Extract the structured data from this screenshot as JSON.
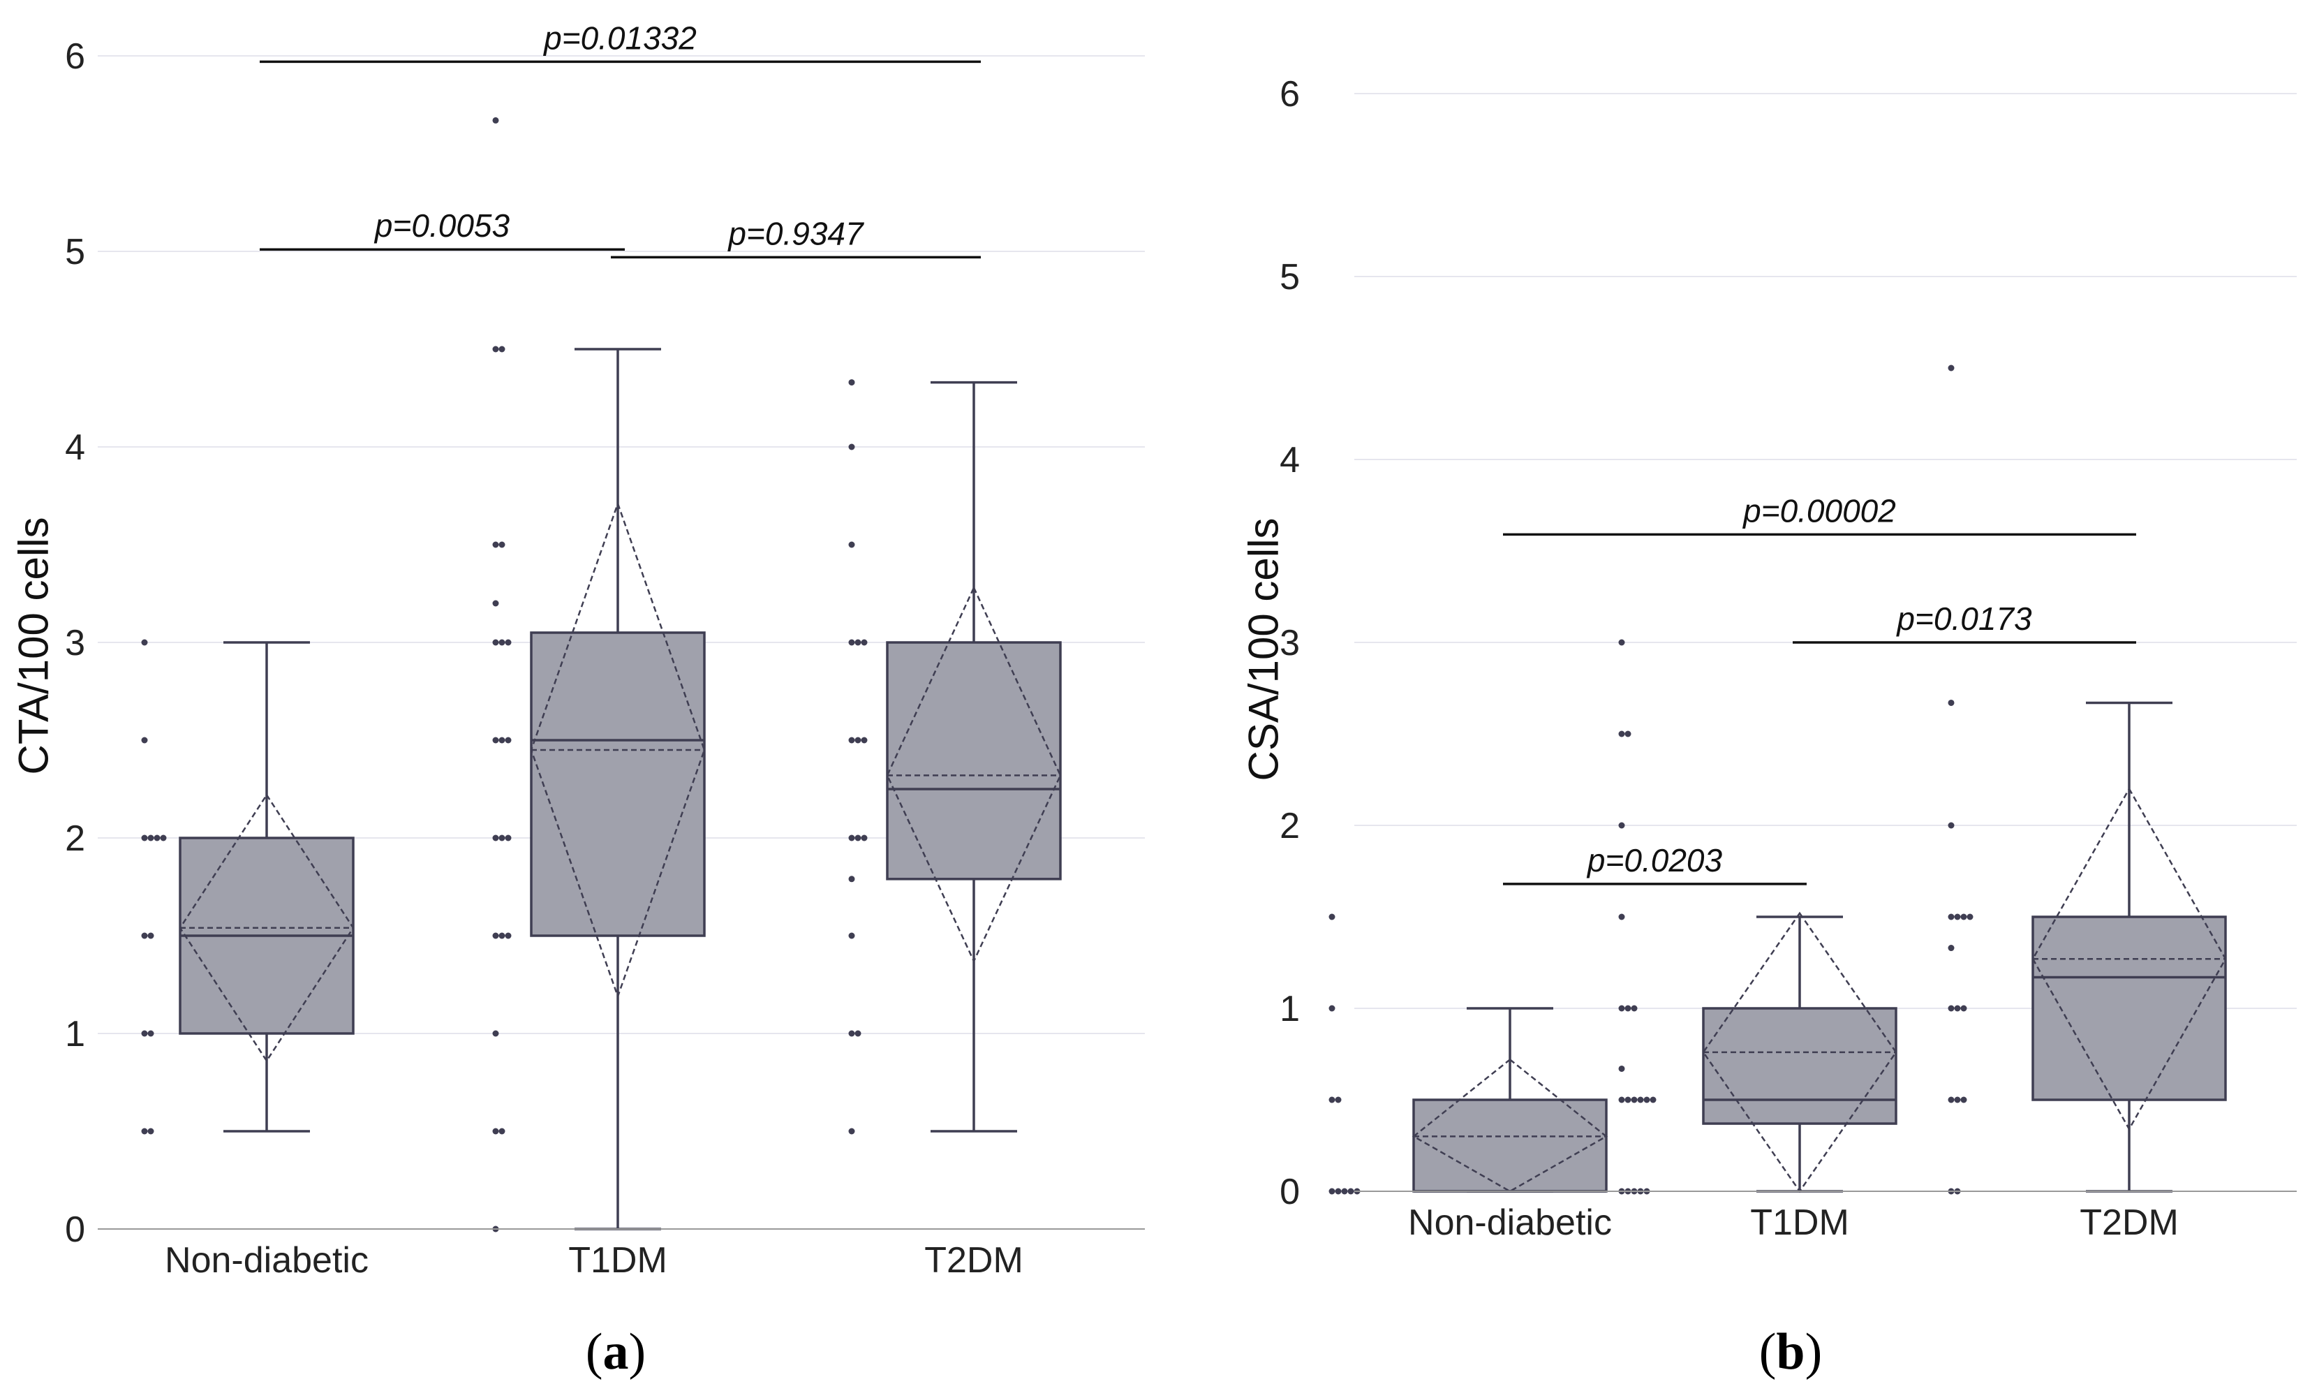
{
  "colors": {
    "box_fill": "#a0a1ac",
    "box_stroke": "#3f3e52",
    "point": "#3f3e52",
    "grid": "#e6e6ee",
    "axis": "#999999",
    "text": "#111111"
  },
  "chart_data": [
    {
      "type": "box",
      "panel_label": {
        "open": "(",
        "letter": "a",
        "close": ")"
      },
      "xlabel": "",
      "ylabel": "CTA/100 cells",
      "ylim": [
        0,
        6
      ],
      "yticks": [
        "0",
        "1",
        "2",
        "3",
        "4",
        "5",
        "6"
      ],
      "categories": [
        "Non-diabetic",
        "T1DM",
        "T2DM"
      ],
      "grid": true,
      "boxes": [
        {
          "category": "Non-diabetic",
          "whisker_low": 0.5,
          "q1": 1.0,
          "median": 1.5,
          "q3": 2.0,
          "whisker_high": 3.0,
          "mean": 1.54,
          "sd_low": 0.86,
          "sd_high": 2.22
        },
        {
          "category": "T1DM",
          "whisker_low": 0.0,
          "q1": 1.5,
          "median": 2.5,
          "q3": 3.05,
          "whisker_high": 4.5,
          "mean": 2.45,
          "sd_low": 1.19,
          "sd_high": 3.71
        },
        {
          "category": "T2DM",
          "whisker_low": 0.5,
          "q1": 1.79,
          "median": 2.25,
          "q3": 3.0,
          "whisker_high": 4.33,
          "mean": 2.32,
          "sd_low": 1.37,
          "sd_high": 3.28
        }
      ],
      "points": [
        {
          "category": "Non-diabetic",
          "values": [
            0.5,
            0.5,
            1.0,
            1.0,
            1.5,
            1.5,
            2.0,
            2.0,
            2.0,
            2.0,
            2.5,
            3.0
          ]
        },
        {
          "category": "T1DM",
          "values": [
            0.0,
            0.5,
            0.5,
            1.0,
            1.5,
            1.5,
            1.5,
            2.0,
            2.0,
            2.0,
            2.5,
            2.5,
            2.5,
            3.0,
            3.0,
            3.0,
            3.2,
            3.5,
            3.5,
            4.5,
            4.5,
            5.67
          ]
        },
        {
          "category": "T2DM",
          "values": [
            0.5,
            1.0,
            1.0,
            1.5,
            1.79,
            2.0,
            2.0,
            2.0,
            2.5,
            2.5,
            2.5,
            3.0,
            3.0,
            3.0,
            3.5,
            4.0,
            4.33
          ]
        }
      ],
      "comparisons": [
        {
          "from": "Non-diabetic",
          "to": "T2DM",
          "y": 5.97,
          "label": "p=0.01332"
        },
        {
          "from": "Non-diabetic",
          "to": "T1DM",
          "y": 5.01,
          "label": "p=0.0053"
        },
        {
          "from": "T1DM",
          "to": "T2DM",
          "y": 4.97,
          "label": "p=0.9347"
        }
      ]
    },
    {
      "type": "box",
      "panel_label": {
        "open": "(",
        "letter": "b",
        "close": ")"
      },
      "xlabel": "",
      "ylabel": "CSA/100 cells",
      "ylim": [
        0,
        6
      ],
      "yticks": [
        "0",
        "1",
        "2",
        "3",
        "4",
        "5",
        "6"
      ],
      "categories": [
        "Non-diabetic",
        "T1DM",
        "T2DM"
      ],
      "grid": true,
      "boxes": [
        {
          "category": "Non-diabetic",
          "whisker_low": 0.0,
          "q1": 0.0,
          "median": 0.0,
          "q3": 0.5,
          "whisker_high": 1.0,
          "mean": 0.3,
          "sd_low": 0.0,
          "sd_high": 0.72
        },
        {
          "category": "T1DM",
          "whisker_low": 0.0,
          "q1": 0.37,
          "median": 0.5,
          "q3": 1.0,
          "whisker_high": 1.5,
          "mean": 0.76,
          "sd_low": 0.0,
          "sd_high": 1.52
        },
        {
          "category": "T2DM",
          "whisker_low": 0.0,
          "q1": 0.5,
          "median": 1.17,
          "q3": 1.5,
          "whisker_high": 2.67,
          "mean": 1.27,
          "sd_low": 0.34,
          "sd_high": 2.2
        }
      ],
      "points": [
        {
          "category": "Non-diabetic",
          "values": [
            0.0,
            0.0,
            0.0,
            0.0,
            0.0,
            0.5,
            0.5,
            1.0,
            1.5
          ]
        },
        {
          "category": "T1DM",
          "values": [
            0.0,
            0.0,
            0.0,
            0.0,
            0.0,
            0.5,
            0.5,
            0.5,
            0.5,
            0.5,
            0.5,
            0.67,
            1.0,
            1.0,
            1.0,
            1.5,
            2.0,
            2.5,
            2.5,
            3.0
          ]
        },
        {
          "category": "T2DM",
          "values": [
            0.0,
            0.0,
            0.5,
            0.5,
            0.5,
            1.0,
            1.0,
            1.0,
            1.33,
            1.5,
            1.5,
            1.5,
            1.5,
            2.0,
            2.67,
            4.5
          ]
        }
      ],
      "comparisons": [
        {
          "from": "Non-diabetic",
          "to": "T2DM",
          "y": 3.59,
          "label": "p=0.00002"
        },
        {
          "from": "T1DM",
          "to": "T2DM",
          "y": 3.0,
          "label": "p=0.0173"
        },
        {
          "from": "Non-diabetic",
          "to": "T1DM",
          "y": 1.68,
          "label": "p=0.0203"
        }
      ]
    }
  ]
}
